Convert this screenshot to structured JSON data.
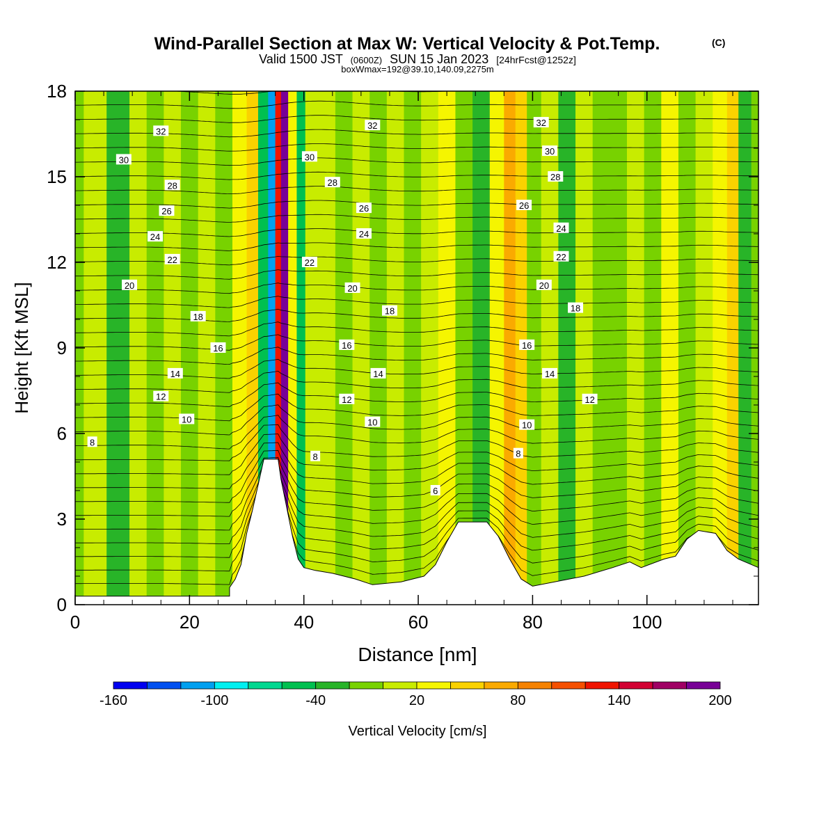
{
  "title": {
    "line1": "Wind-Parallel Section at Max W: Vertical Velocity & Pot.Temp.",
    "copyright": "(C)",
    "line2_a": "Valid 1500 JST",
    "line2_b": "(0600Z)",
    "line2_c": "SUN 15 Jan 2023",
    "line2_d": "[24hrFcst@1252z]",
    "line3": "boxWmax=192@39.10,140.09,2275m"
  },
  "chart_data": {
    "type": "heatmap",
    "xlabel": "Distance [nm]",
    "ylabel": "Height [Kft MSL]",
    "xlim": [
      0,
      119.5
    ],
    "ylim": [
      0,
      18
    ],
    "x_ticks": [
      0,
      20,
      40,
      60,
      80,
      100
    ],
    "y_ticks": [
      0,
      3,
      6,
      9,
      12,
      15,
      18
    ],
    "colorbar": {
      "label": "Vertical Velocity [cm/s]",
      "min": -160,
      "max": 200,
      "step": 20,
      "tick_labels": [
        -160,
        -100,
        -40,
        20,
        80,
        140,
        200
      ],
      "colors": [
        "#0000f0",
        "#0050f0",
        "#00a0f0",
        "#00f0f0",
        "#00d890",
        "#00c050",
        "#28b428",
        "#78d200",
        "#c8ec00",
        "#f5f500",
        "#fad200",
        "#faaa00",
        "#f58200",
        "#f55000",
        "#f01400",
        "#d20032",
        "#a00064",
        "#780096"
      ]
    },
    "vertical_velocity_columns": [
      {
        "x": 0,
        "w": -10
      },
      {
        "x": 3,
        "w": 0
      },
      {
        "x": 8,
        "w": -25
      },
      {
        "x": 11,
        "w": 5
      },
      {
        "x": 14,
        "w": -15
      },
      {
        "x": 17,
        "w": 10
      },
      {
        "x": 20,
        "w": -20
      },
      {
        "x": 23,
        "w": 0
      },
      {
        "x": 26,
        "w": -10
      },
      {
        "x": 29,
        "w": 20
      },
      {
        "x": 31,
        "w": 40
      },
      {
        "x": 33,
        "w": -60
      },
      {
        "x": 34.5,
        "w": -110
      },
      {
        "x": 35.5,
        "w": 120
      },
      {
        "x": 36.5,
        "w": 190
      },
      {
        "x": 38,
        "w": 30
      },
      {
        "x": 39.5,
        "w": -60
      },
      {
        "x": 41,
        "w": 0
      },
      {
        "x": 44,
        "w": 10
      },
      {
        "x": 47,
        "w": -20
      },
      {
        "x": 50,
        "w": 15
      },
      {
        "x": 53,
        "w": -10
      },
      {
        "x": 56,
        "w": 0
      },
      {
        "x": 59,
        "w": -15
      },
      {
        "x": 62,
        "w": 10
      },
      {
        "x": 65,
        "w": 30
      },
      {
        "x": 68,
        "w": -20
      },
      {
        "x": 71,
        "w": -40
      },
      {
        "x": 74,
        "w": 20
      },
      {
        "x": 76,
        "w": 60
      },
      {
        "x": 78,
        "w": 50
      },
      {
        "x": 80,
        "w": -10
      },
      {
        "x": 83,
        "w": 0
      },
      {
        "x": 86,
        "w": -30
      },
      {
        "x": 89,
        "w": 10
      },
      {
        "x": 92,
        "w": -20
      },
      {
        "x": 95,
        "w": -10
      },
      {
        "x": 98,
        "w": 0
      },
      {
        "x": 101,
        "w": -15
      },
      {
        "x": 104,
        "w": 20
      },
      {
        "x": 107,
        "w": -20
      },
      {
        "x": 110,
        "w": 10
      },
      {
        "x": 113,
        "w": 30
      },
      {
        "x": 115,
        "w": 40
      },
      {
        "x": 117,
        "w": -40
      },
      {
        "x": 119.5,
        "w": -20
      }
    ],
    "terrain_height_kft": [
      {
        "x": 0,
        "h": 0.3
      },
      {
        "x": 27,
        "h": 0.3
      },
      {
        "x": 27,
        "h": 0.6
      },
      {
        "x": 28,
        "h": 0.9
      },
      {
        "x": 29,
        "h": 1.4
      },
      {
        "x": 30,
        "h": 2.5
      },
      {
        "x": 31,
        "h": 3.3
      },
      {
        "x": 32,
        "h": 4.2
      },
      {
        "x": 33,
        "h": 5.1
      },
      {
        "x": 35.5,
        "h": 5.1
      },
      {
        "x": 36,
        "h": 4.4
      },
      {
        "x": 37,
        "h": 3.4
      },
      {
        "x": 38,
        "h": 2.4
      },
      {
        "x": 39,
        "h": 1.6
      },
      {
        "x": 40,
        "h": 1.3
      },
      {
        "x": 42,
        "h": 1.2
      },
      {
        "x": 45,
        "h": 1.1
      },
      {
        "x": 49,
        "h": 0.9
      },
      {
        "x": 52,
        "h": 0.7
      },
      {
        "x": 57,
        "h": 0.8
      },
      {
        "x": 61,
        "h": 1.0
      },
      {
        "x": 63,
        "h": 1.4
      },
      {
        "x": 65,
        "h": 2.2
      },
      {
        "x": 67,
        "h": 2.9
      },
      {
        "x": 72,
        "h": 2.9
      },
      {
        "x": 74,
        "h": 2.4
      },
      {
        "x": 76,
        "h": 1.6
      },
      {
        "x": 78,
        "h": 0.9
      },
      {
        "x": 80,
        "h": 0.65
      },
      {
        "x": 89,
        "h": 1.0
      },
      {
        "x": 94,
        "h": 1.3
      },
      {
        "x": 97,
        "h": 1.5
      },
      {
        "x": 99,
        "h": 1.3
      },
      {
        "x": 103,
        "h": 1.6
      },
      {
        "x": 105,
        "h": 1.7
      },
      {
        "x": 107,
        "h": 2.3
      },
      {
        "x": 109,
        "h": 2.6
      },
      {
        "x": 112,
        "h": 2.5
      },
      {
        "x": 114,
        "h": 1.9
      },
      {
        "x": 116,
        "h": 1.6
      },
      {
        "x": 119.5,
        "h": 1.3
      }
    ],
    "potential_temperature_labels": [
      {
        "text": "32",
        "x": 15,
        "y": 16.6
      },
      {
        "text": "30",
        "x": 8.5,
        "y": 15.6
      },
      {
        "text": "28",
        "x": 17,
        "y": 14.7
      },
      {
        "text": "26",
        "x": 16,
        "y": 13.8
      },
      {
        "text": "24",
        "x": 14,
        "y": 12.9
      },
      {
        "text": "22",
        "x": 17,
        "y": 12.1
      },
      {
        "text": "20",
        "x": 9.5,
        "y": 11.2
      },
      {
        "text": "18",
        "x": 21.5,
        "y": 10.1
      },
      {
        "text": "16",
        "x": 25,
        "y": 9.0
      },
      {
        "text": "14",
        "x": 17.5,
        "y": 8.1
      },
      {
        "text": "12",
        "x": 15,
        "y": 7.3
      },
      {
        "text": "10",
        "x": 19.5,
        "y": 6.5
      },
      {
        "text": "8",
        "x": 3,
        "y": 5.7
      },
      {
        "text": "32",
        "x": 52,
        "y": 16.8
      },
      {
        "text": "30",
        "x": 41,
        "y": 15.7
      },
      {
        "text": "28",
        "x": 45,
        "y": 14.8
      },
      {
        "text": "26",
        "x": 50.5,
        "y": 13.9
      },
      {
        "text": "24",
        "x": 50.5,
        "y": 13.0
      },
      {
        "text": "22",
        "x": 41,
        "y": 12.0
      },
      {
        "text": "20",
        "x": 48.5,
        "y": 11.1
      },
      {
        "text": "18",
        "x": 55,
        "y": 10.3
      },
      {
        "text": "16",
        "x": 47.5,
        "y": 9.1
      },
      {
        "text": "14",
        "x": 53,
        "y": 8.1
      },
      {
        "text": "12",
        "x": 47.5,
        "y": 7.2
      },
      {
        "text": "10",
        "x": 52,
        "y": 6.4
      },
      {
        "text": "8",
        "x": 42,
        "y": 5.2
      },
      {
        "text": "6",
        "x": 63,
        "y": 4.0
      },
      {
        "text": "32",
        "x": 81.5,
        "y": 16.9
      },
      {
        "text": "30",
        "x": 83,
        "y": 15.9
      },
      {
        "text": "28",
        "x": 84,
        "y": 15.0
      },
      {
        "text": "26",
        "x": 78.5,
        "y": 14.0
      },
      {
        "text": "24",
        "x": 85,
        "y": 13.2
      },
      {
        "text": "22",
        "x": 85,
        "y": 12.2
      },
      {
        "text": "20",
        "x": 82,
        "y": 11.2
      },
      {
        "text": "18",
        "x": 87.5,
        "y": 10.4
      },
      {
        "text": "16",
        "x": 79,
        "y": 9.1
      },
      {
        "text": "14",
        "x": 83,
        "y": 8.1
      },
      {
        "text": "12",
        "x": 90,
        "y": 7.2
      },
      {
        "text": "10",
        "x": 79,
        "y": 6.3
      },
      {
        "text": "8",
        "x": 77.5,
        "y": 5.3
      }
    ]
  }
}
